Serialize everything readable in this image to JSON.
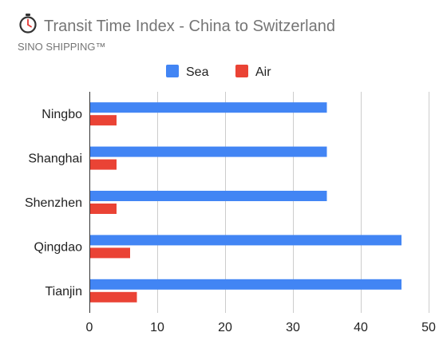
{
  "header": {
    "title": "Transit Time Index - China to Switzerland",
    "subtitle": "SINO SHIPPING™",
    "title_icon": "stopwatch-icon"
  },
  "colors": {
    "sea": "#4285f4",
    "air": "#ea4335",
    "title_text": "#757575",
    "subtitle_text": "#757575",
    "label_text": "#222222",
    "gridline": "#cccccc",
    "axis_line": "#333333",
    "icon_accent": "#e53935"
  },
  "chart_data": {
    "type": "bar",
    "orientation": "horizontal",
    "title": "Transit Time Index - China to Switzerland",
    "subtitle": "SINO SHIPPING™",
    "categories": [
      "Ningbo",
      "Shanghai",
      "Shenzhen",
      "Qingdao",
      "Tianjin"
    ],
    "series": [
      {
        "name": "Sea",
        "values": [
          35,
          35,
          35,
          46,
          46
        ]
      },
      {
        "name": "Air",
        "values": [
          4,
          4,
          4,
          6,
          7
        ]
      }
    ],
    "xlim": [
      0,
      50
    ],
    "x_ticks": [
      0,
      10,
      20,
      30,
      40,
      50
    ],
    "xlabel": "",
    "ylabel": "",
    "grid": true,
    "legend_position": "top"
  }
}
